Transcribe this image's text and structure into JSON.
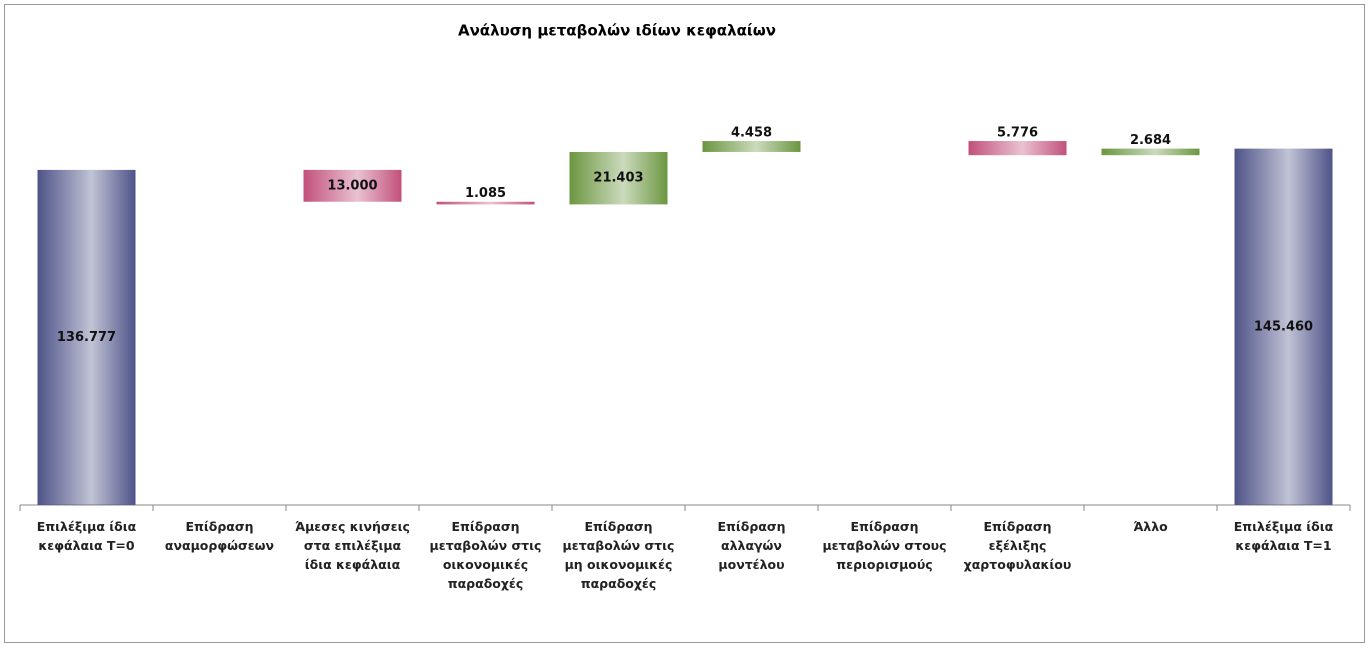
{
  "chart_data": {
    "type": "waterfall",
    "title": "Ανάλυση μεταβολών ιδίων κεφαλαίων",
    "categories": [
      "Επιλέξιμα ίδια κεφάλαια T=0",
      "Επίδραση αναμορφώσεων",
      "Άμεσες κινήσεις στα επιλέξιμα ίδια κεφάλαια",
      "Επίδραση μεταβολών στις οικονομικές παραδοχές",
      "Επίδραση μεταβολών στις μη οικονομικές παραδοχές",
      "Επίδραση αλλαγών μοντέλου",
      "Επίδραση μεταβολών στους περιορισμούς",
      "Επίδραση εξέλιξης χαρτοφυλακίου",
      "Άλλο",
      "Επιλέξιμα ίδια κεφάλαια T=1"
    ],
    "measures": [
      "total",
      "relative",
      "relative",
      "relative",
      "relative",
      "relative",
      "relative",
      "relative",
      "relative",
      "total"
    ],
    "values": [
      136.777,
      0,
      -13,
      -1.085,
      21.403,
      4.458,
      0,
      -5.776,
      2.684,
      145.46
    ],
    "value_labels": [
      "136.777",
      null,
      "13.000",
      "1.085",
      "21.403",
      "4.458",
      null,
      "5.776",
      "2.684",
      "145.460"
    ],
    "colors": {
      "total": "#4e5388",
      "increase": "#6b9640",
      "decrease": "#c2507c"
    },
    "ylim": [
      0,
      160
    ]
  }
}
